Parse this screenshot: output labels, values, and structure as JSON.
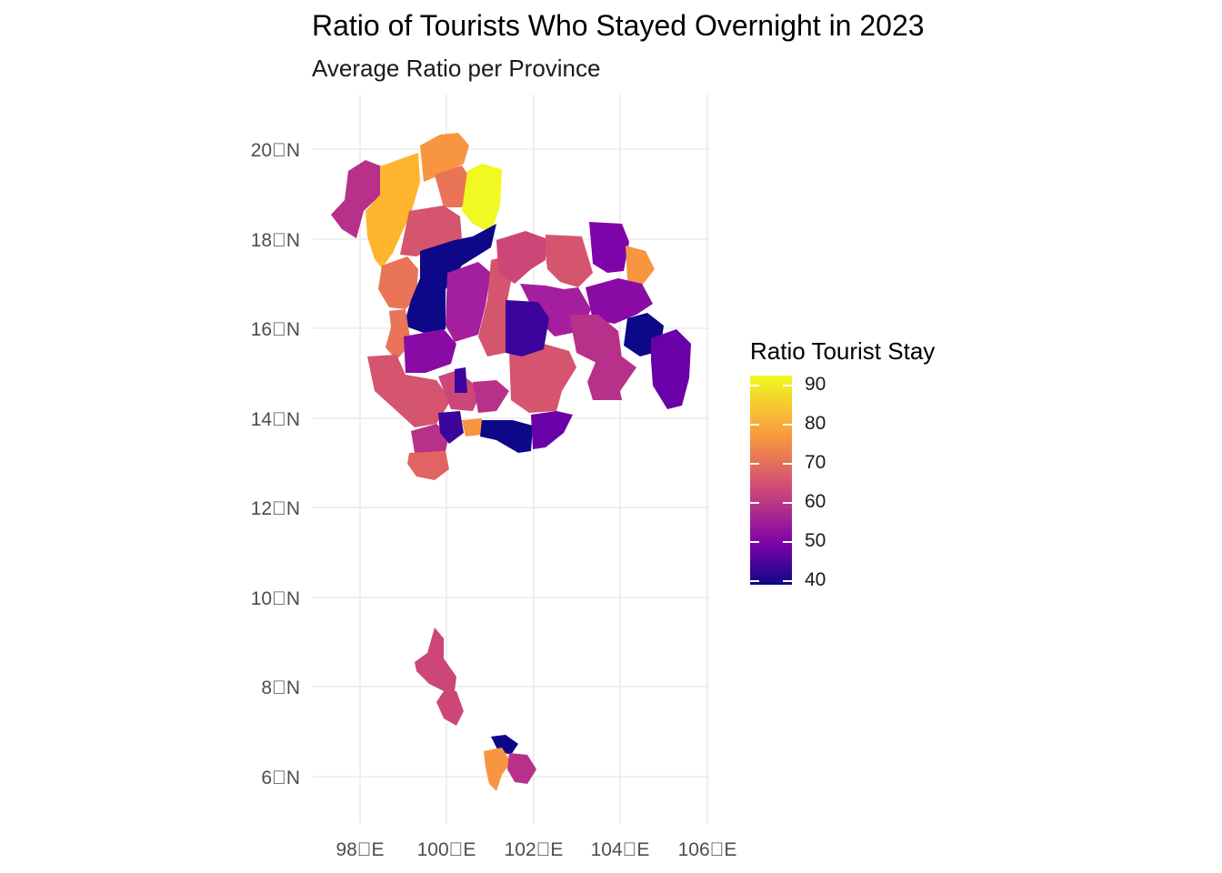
{
  "title": "Ratio of Tourists Who Stayed Overnight in 2023",
  "subtitle": "Average Ratio per Province",
  "axes": {
    "x_ticks": [
      "98\u0000E",
      "100\u0000E",
      "102\u0000E",
      "104\u0000E",
      "106\u0000E"
    ],
    "y_ticks": [
      "20\u0000N",
      "18\u0000N",
      "16\u0000N",
      "14\u0000N",
      "12\u0000N",
      "10\u0000N",
      "8\u0000N",
      "6\u0000N"
    ],
    "x_range": [
      97,
      106
    ],
    "y_range": [
      5,
      21
    ]
  },
  "legend": {
    "title": "Ratio Tourist Stay",
    "labels": [
      "90",
      "80",
      "70",
      "60",
      "50",
      "40"
    ],
    "range": [
      40,
      92
    ],
    "palette": [
      "#0d0887",
      "#7e03a8",
      "#cc4778",
      "#f89540",
      "#f0f921"
    ]
  }
}
